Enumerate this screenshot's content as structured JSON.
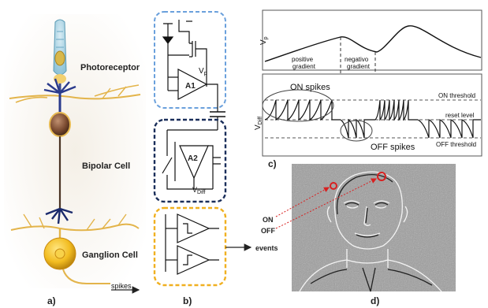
{
  "panel_a": {
    "photoreceptor": "Photoreceptor",
    "bipolar": "Bipolar Cell",
    "ganglion": "Ganglion Cell",
    "spikes": "spikes",
    "caption": "a)"
  },
  "panel_b": {
    "amp1": "A1",
    "amp2": "A2",
    "vp": "Vp",
    "vdiff": "VDiff",
    "events": "events",
    "caption": "b)"
  },
  "panel_c": {
    "y_top": "Vp",
    "y_bottom": "VDiff",
    "positive_gradient": [
      "positive",
      "gradient"
    ],
    "negative_gradient": [
      "negativo",
      "gradient"
    ],
    "on_spikes": "ON spikes",
    "off_spikes": "OFF spikes",
    "on_threshold": "ON threshold",
    "reset_level": "reset level",
    "off_threshold": "OFF threshold",
    "caption": "c)"
  },
  "panel_d": {
    "on": "ON",
    "off": "OFF",
    "events": "events",
    "caption": "d)"
  },
  "colors": {
    "box1": "#6aa0dc",
    "box2": "#1a2e5a",
    "box3": "#f0b020",
    "on_marker": "#d82020"
  }
}
